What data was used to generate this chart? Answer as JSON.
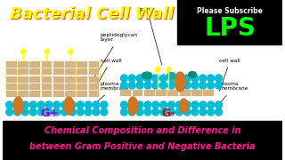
{
  "title": "Bacterial Cell Wall",
  "subtitle_line1": "Chemical Composition and Difference in",
  "subtitle_line2": "between Gram Positive and Negative Bacteria",
  "please_subscribe": "Please Subscribe",
  "lps_label": "LPS",
  "gplus_label": "G+",
  "gminus_label": "G-",
  "labels_left": [
    "peptidoglycan\nlayer",
    "cell wall",
    "plasma\nmembrane"
  ],
  "labels_right": [
    "porin",
    "cell wall",
    "plasma\nmembrane"
  ],
  "bg_color": "#ffffff",
  "title_color1": "#ffff00",
  "title_color2": "#ff4400",
  "subtitle_bg": "#000000",
  "subtitle_color": "#ff1493",
  "lps_bg": "#000000",
  "lps_color": "#00ff00",
  "subscribe_color": "#ffffff",
  "gplus_color": "#9900cc",
  "gminus_color": "#cc0000",
  "peptidoglycan_color": "#d4b483",
  "teal_color": "#00bcd4",
  "yellow_pin_color": "#ffff00",
  "orange_oval_color": "#cc7722",
  "pg_edge_color": "#a08050"
}
